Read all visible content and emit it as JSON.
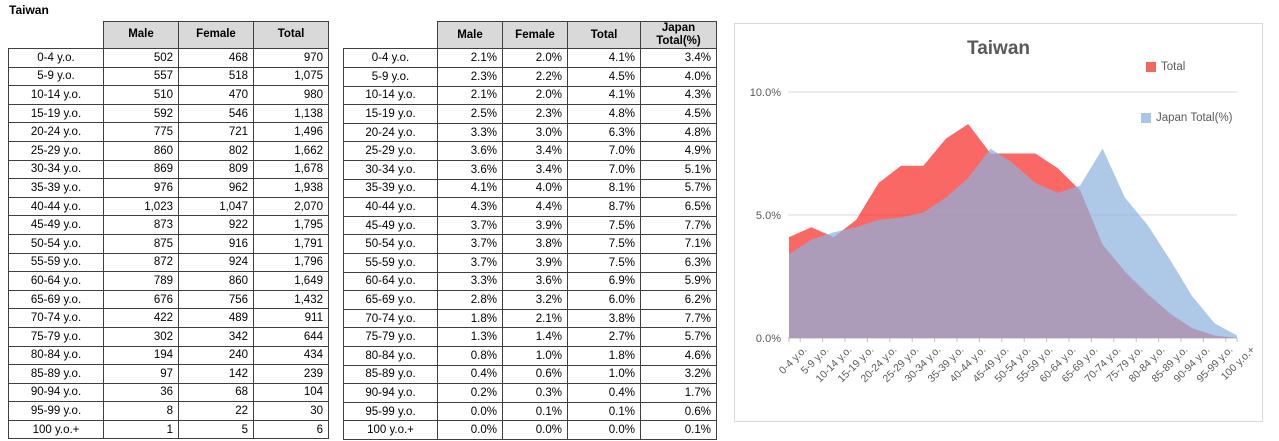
{
  "sheet_title": "Taiwan",
  "count_table": {
    "headers": [
      "Male",
      "Female",
      "Total"
    ],
    "rows": [
      [
        "0-4 y.o.",
        "502",
        "468",
        "970"
      ],
      [
        "5-9 y.o.",
        "557",
        "518",
        "1,075"
      ],
      [
        "10-14 y.o.",
        "510",
        "470",
        "980"
      ],
      [
        "15-19 y.o.",
        "592",
        "546",
        "1,138"
      ],
      [
        "20-24 y.o.",
        "775",
        "721",
        "1,496"
      ],
      [
        "25-29 y.o.",
        "860",
        "802",
        "1,662"
      ],
      [
        "30-34 y.o.",
        "869",
        "809",
        "1,678"
      ],
      [
        "35-39 y.o.",
        "976",
        "962",
        "1,938"
      ],
      [
        "40-44 y.o.",
        "1,023",
        "1,047",
        "2,070"
      ],
      [
        "45-49 y.o.",
        "873",
        "922",
        "1,795"
      ],
      [
        "50-54 y.o.",
        "875",
        "916",
        "1,791"
      ],
      [
        "55-59 y.o.",
        "872",
        "924",
        "1,796"
      ],
      [
        "60-64 y.o.",
        "789",
        "860",
        "1,649"
      ],
      [
        "65-69 y.o.",
        "676",
        "756",
        "1,432"
      ],
      [
        "70-74 y.o.",
        "422",
        "489",
        "911"
      ],
      [
        "75-79 y.o.",
        "302",
        "342",
        "644"
      ],
      [
        "80-84 y.o.",
        "194",
        "240",
        "434"
      ],
      [
        "85-89 y.o.",
        "97",
        "142",
        "239"
      ],
      [
        "90-94 y.o.",
        "36",
        "68",
        "104"
      ],
      [
        "95-99 y.o.",
        "8",
        "22",
        "30"
      ],
      [
        "100 y.o.+",
        "1",
        "5",
        "6"
      ]
    ]
  },
  "percent_table": {
    "headers": [
      "Male",
      "Female",
      "Total",
      "Japan Total(%)"
    ],
    "rows": [
      [
        "0-4 y.o.",
        "2.1%",
        "2.0%",
        "4.1%",
        "3.4%"
      ],
      [
        "5-9 y.o.",
        "2.3%",
        "2.2%",
        "4.5%",
        "4.0%"
      ],
      [
        "10-14 y.o.",
        "2.1%",
        "2.0%",
        "4.1%",
        "4.3%"
      ],
      [
        "15-19 y.o.",
        "2.5%",
        "2.3%",
        "4.8%",
        "4.5%"
      ],
      [
        "20-24 y.o.",
        "3.3%",
        "3.0%",
        "6.3%",
        "4.8%"
      ],
      [
        "25-29 y.o.",
        "3.6%",
        "3.4%",
        "7.0%",
        "4.9%"
      ],
      [
        "30-34 y.o.",
        "3.6%",
        "3.4%",
        "7.0%",
        "5.1%"
      ],
      [
        "35-39 y.o.",
        "4.1%",
        "4.0%",
        "8.1%",
        "5.7%"
      ],
      [
        "40-44 y.o.",
        "4.3%",
        "4.4%",
        "8.7%",
        "6.5%"
      ],
      [
        "45-49 y.o.",
        "3.7%",
        "3.9%",
        "7.5%",
        "7.7%"
      ],
      [
        "50-54 y.o.",
        "3.7%",
        "3.8%",
        "7.5%",
        "7.1%"
      ],
      [
        "55-59 y.o.",
        "3.7%",
        "3.9%",
        "7.5%",
        "6.3%"
      ],
      [
        "60-64 y.o.",
        "3.3%",
        "3.6%",
        "6.9%",
        "5.9%"
      ],
      [
        "65-69 y.o.",
        "2.8%",
        "3.2%",
        "6.0%",
        "6.2%"
      ],
      [
        "70-74 y.o.",
        "1.8%",
        "2.1%",
        "3.8%",
        "7.7%"
      ],
      [
        "75-79 y.o.",
        "1.3%",
        "1.4%",
        "2.7%",
        "5.7%"
      ],
      [
        "80-84 y.o.",
        "0.8%",
        "1.0%",
        "1.8%",
        "4.6%"
      ],
      [
        "85-89 y.o.",
        "0.4%",
        "0.6%",
        "1.0%",
        "3.2%"
      ],
      [
        "90-94 y.o.",
        "0.2%",
        "0.3%",
        "0.4%",
        "1.7%"
      ],
      [
        "95-99 y.o.",
        "0.0%",
        "0.1%",
        "0.1%",
        "0.6%"
      ],
      [
        "100 y.o.+",
        "0.0%",
        "0.0%",
        "0.0%",
        "0.1%"
      ]
    ]
  },
  "chart_data": {
    "type": "area",
    "title": "Taiwan",
    "categories": [
      "0-4 y.o.",
      "5-9 y.o.",
      "10-14 y.o.",
      "15-19 y.o.",
      "20-24 y.o.",
      "25-29 y.o.",
      "30-34 y.o.",
      "35-39 y.o.",
      "40-44 y.o.",
      "45-49 y.o.",
      "50-54 y.o.",
      "55-59 y.o.",
      "60-64 y.o.",
      "65-69 y.o.",
      "70-74 y.o.",
      "75-79 y.o.",
      "80-84 y.o.",
      "85-89 y.o.",
      "90-94 y.o.",
      "95-99 y.o.",
      "100 y.o.+"
    ],
    "series": [
      {
        "name": "Total",
        "color": "rgba(248,40,35,0.70)",
        "legend_color": "#f4655f",
        "values": [
          4.1,
          4.5,
          4.1,
          4.8,
          6.3,
          7.0,
          7.0,
          8.1,
          8.7,
          7.5,
          7.5,
          7.5,
          6.9,
          6.0,
          3.8,
          2.7,
          1.8,
          1.0,
          0.4,
          0.1,
          0.0
        ]
      },
      {
        "name": "Japan Total(%)",
        "color": "rgba(139,176,222,0.70)",
        "legend_color": "#aac7e9",
        "values": [
          3.4,
          4.0,
          4.3,
          4.5,
          4.8,
          4.9,
          5.1,
          5.7,
          6.5,
          7.7,
          7.1,
          6.3,
          5.9,
          6.2,
          7.7,
          5.7,
          4.6,
          3.2,
          1.7,
          0.6,
          0.1
        ]
      }
    ],
    "ylim": [
      0,
      10
    ],
    "yticks": [
      {
        "label": "0.0%",
        "value": 0
      },
      {
        "label": "5.0%",
        "value": 5
      },
      {
        "label": "10.0%",
        "value": 10
      }
    ],
    "grid": true,
    "legend_position": "right"
  },
  "colors": {
    "header_fill": "#d9d9d9",
    "table_border": "#3f3f3f",
    "chart_border": "#d9d9d9",
    "gridline": "#d9d9d9",
    "axis_line": "#bfbfbf",
    "chart_text": "#595959",
    "total_area": "rgba(248,40,35,0.70)",
    "japan_area": "rgba(139,176,222,0.70)"
  }
}
